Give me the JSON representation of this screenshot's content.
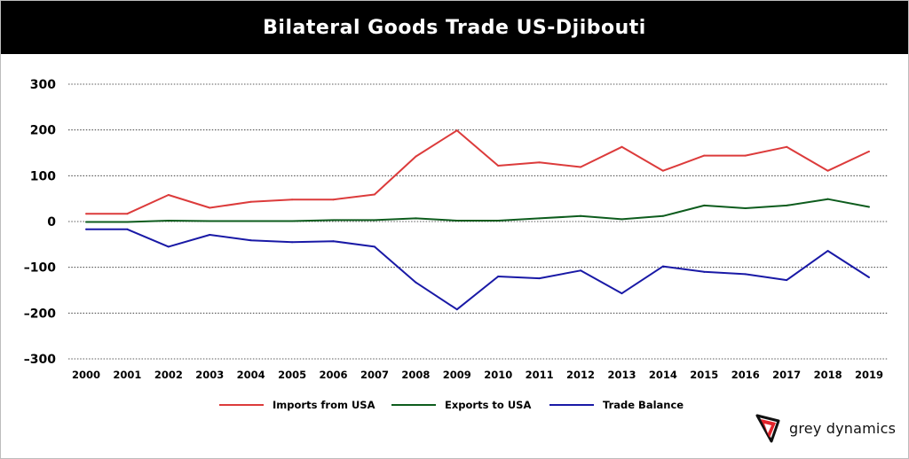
{
  "header": {
    "title": "Bilateral Goods Trade US-Djibouti"
  },
  "brand": {
    "name": "grey dynamics",
    "logo_icon": "grey-dynamics-logo-icon",
    "logo_color": "#e3242b"
  },
  "chart_data": {
    "type": "line",
    "title": "Bilateral Goods Trade US-Djibouti",
    "xlabel": "",
    "ylabel": "",
    "ylim": [
      -300,
      300
    ],
    "yticks": [
      300,
      200,
      100,
      0,
      -100,
      -200,
      -300
    ],
    "ytick_labels": [
      "300",
      "200",
      "100",
      "0",
      "–100",
      "–200",
      "–300"
    ],
    "grid": true,
    "legend_position": "bottom-center",
    "categories": [
      "2000",
      "2001",
      "2002",
      "2003",
      "2004",
      "2005",
      "2006",
      "2007",
      "2008",
      "2009",
      "2010",
      "2011",
      "2012",
      "2013",
      "2014",
      "2015",
      "2016",
      "2017",
      "2018",
      "2019"
    ],
    "series": [
      {
        "name": "Imports from USA",
        "color": "#dc3b3b",
        "values": [
          17,
          17,
          58,
          30,
          43,
          48,
          48,
          59,
          142,
          199,
          122,
          129,
          119,
          163,
          111,
          144,
          144,
          163,
          111,
          153
        ]
      },
      {
        "name": "Exports to USA",
        "color": "#0d5c1d",
        "values": [
          -1,
          -1,
          2,
          1,
          1,
          1,
          3,
          3,
          7,
          2,
          2,
          7,
          12,
          5,
          12,
          35,
          29,
          35,
          49,
          32
        ]
      },
      {
        "name": "Trade Balance",
        "color": "#1919a6",
        "values": [
          -17,
          -17,
          -55,
          -29,
          -41,
          -45,
          -43,
          -55,
          -133,
          -192,
          -120,
          -124,
          -107,
          -157,
          -98,
          -110,
          -115,
          -128,
          -64,
          -122
        ]
      }
    ]
  }
}
